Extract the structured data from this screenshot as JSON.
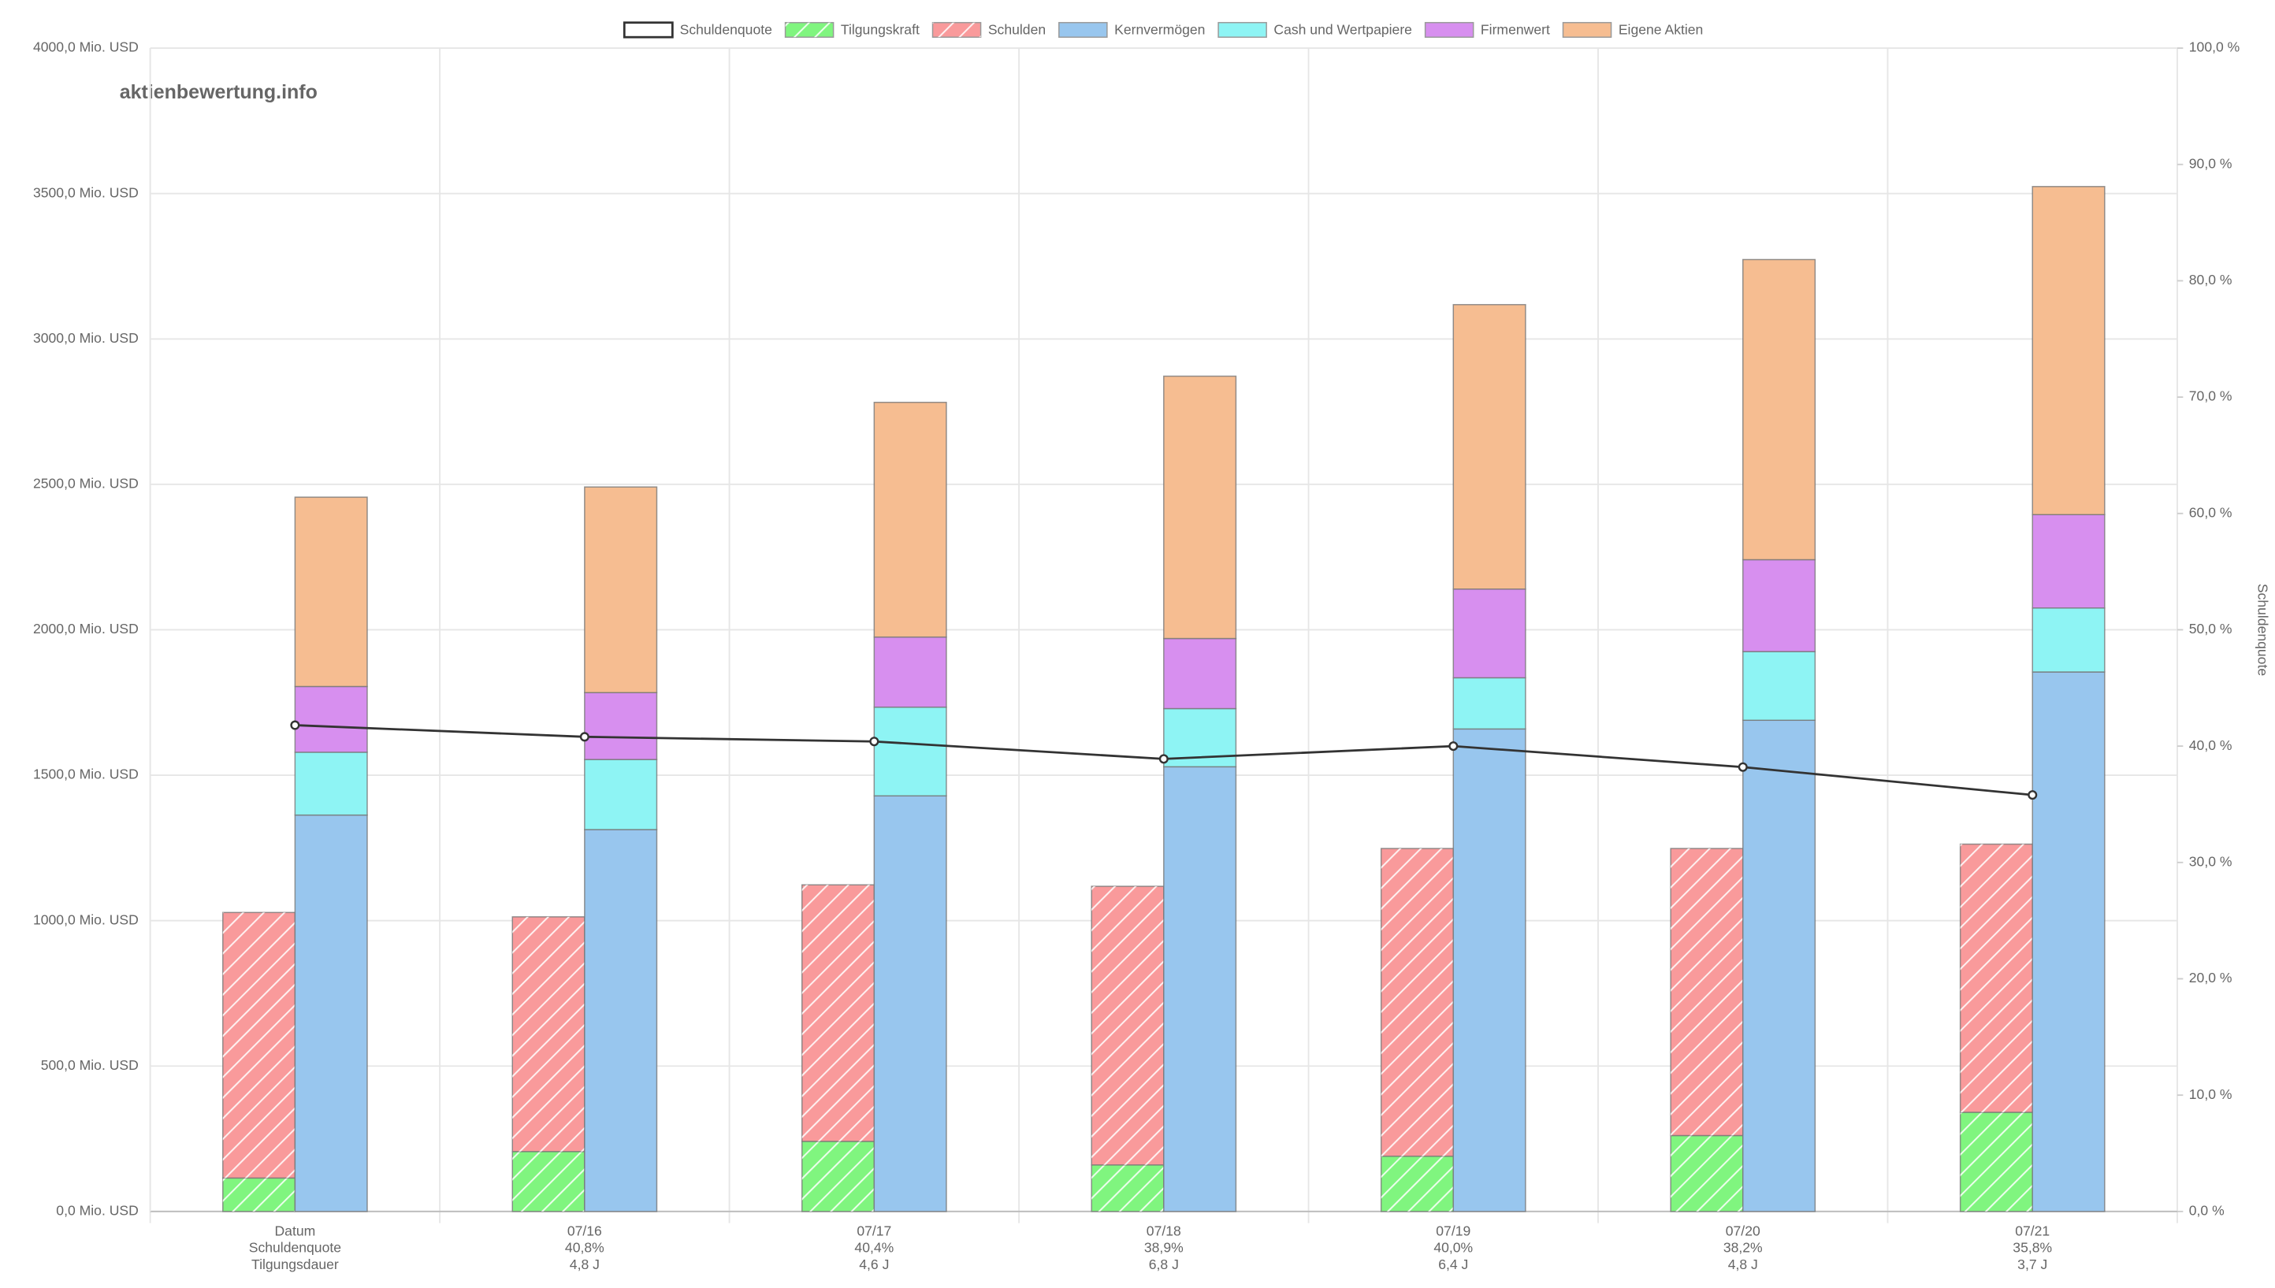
{
  "chart_data": {
    "type": "bar",
    "watermark": "aktienbewertung.info",
    "categories": [
      [
        "Datum",
        "Schuldenquote",
        "Tilgungsdauer"
      ],
      [
        "07/16",
        "40,8%",
        "4,8 J"
      ],
      [
        "07/17",
        "40,4%",
        "4,6 J"
      ],
      [
        "07/18",
        "38,9%",
        "6,8 J"
      ],
      [
        "07/19",
        "40,0%",
        "6,4 J"
      ],
      [
        "07/20",
        "38,2%",
        "4,8 J"
      ],
      [
        "07/21",
        "35,8%",
        "3,7 J"
      ]
    ],
    "series": [
      {
        "name": "Schuldenquote",
        "type": "line",
        "axis": "y2",
        "color": "#333333",
        "values": [
          41.8,
          40.8,
          40.4,
          38.9,
          40.0,
          38.2,
          35.8
        ]
      },
      {
        "name": "Tilgungskraft",
        "stack": "a",
        "pattern": "hatch",
        "color": "#80f57f",
        "values": [
          115,
          206,
          241,
          160,
          190,
          261,
          341
        ]
      },
      {
        "name": "Schulden",
        "stack": "a",
        "pattern": "hatch",
        "color": "#f99a9b",
        "values": [
          913,
          807,
          882,
          958,
          1058,
          987,
          922
        ]
      },
      {
        "name": "Kernvermögen",
        "stack": "b",
        "color": "#98c6ee",
        "values": [
          1363,
          1313,
          1429,
          1529,
          1659,
          1689,
          1855
        ]
      },
      {
        "name": "Cash und Wertpapiere",
        "stack": "b",
        "color": "#8ef4f4",
        "values": [
          216,
          241,
          305,
          200,
          176,
          236,
          220
        ]
      },
      {
        "name": "Firmenwert",
        "stack": "b",
        "color": "#d78fef",
        "values": [
          226,
          230,
          241,
          241,
          305,
          316,
          321
        ]
      },
      {
        "name": "Eigene Aktien",
        "stack": "b",
        "color": "#f6bd91",
        "values": [
          651,
          707,
          807,
          902,
          978,
          1032,
          1128
        ]
      }
    ],
    "ylim": [
      0,
      4000
    ],
    "yticks": [
      {
        "value": 0,
        "label": "0,0 Mio. USD"
      },
      {
        "value": 500,
        "label": "500,0 Mio. USD"
      },
      {
        "value": 1000,
        "label": "1000,0 Mio. USD"
      },
      {
        "value": 1500,
        "label": "1500,0 Mio. USD"
      },
      {
        "value": 2000,
        "label": "2000,0 Mio. USD"
      },
      {
        "value": 2500,
        "label": "2500,0 Mio. USD"
      },
      {
        "value": 3000,
        "label": "3000,0 Mio. USD"
      },
      {
        "value": 3500,
        "label": "3500,0 Mio. USD"
      },
      {
        "value": 4000,
        "label": "4000,0 Mio. USD"
      }
    ],
    "y2lim": [
      0,
      100
    ],
    "y2ticks": [
      {
        "value": 0,
        "label": "0,0 %"
      },
      {
        "value": 10,
        "label": "10,0 %"
      },
      {
        "value": 20,
        "label": "20,0 %"
      },
      {
        "value": 30,
        "label": "30,0 %"
      },
      {
        "value": 40,
        "label": "40,0 %"
      },
      {
        "value": 50,
        "label": "50,0 %"
      },
      {
        "value": 60,
        "label": "60,0 %"
      },
      {
        "value": 70,
        "label": "70,0 %"
      },
      {
        "value": 80,
        "label": "80,0 %"
      },
      {
        "value": 90,
        "label": "90,0 %"
      },
      {
        "value": 100,
        "label": "100,0 %"
      }
    ],
    "y2label": "Schuldenquote",
    "grid": true,
    "legend": "top"
  }
}
